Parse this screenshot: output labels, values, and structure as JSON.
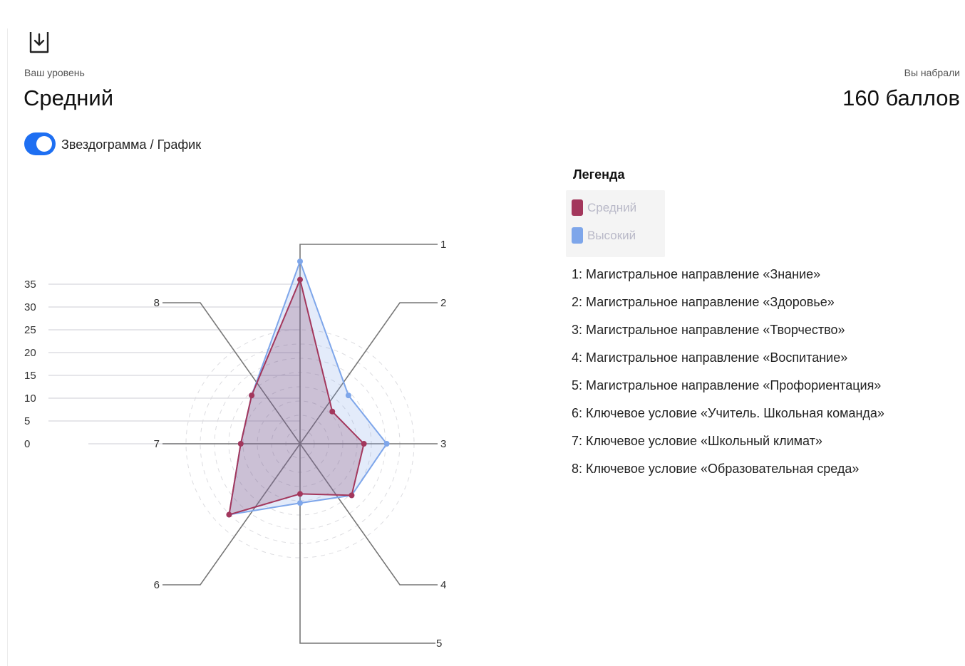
{
  "header": {
    "level_label": "Ваш уровень",
    "level_value": "Средний",
    "score_label": "Вы набрали",
    "score_value": "160 баллов",
    "download_icon": "download-icon"
  },
  "toggle": {
    "label": "Звездограмма / График",
    "on": true
  },
  "legend": {
    "title": "Легенда",
    "series": [
      {
        "name": "Средний",
        "color": "#a3375c"
      },
      {
        "name": "Высокий",
        "color": "#7ea6ea"
      }
    ],
    "axes": [
      "1: Магистральное направление «Знание»",
      "2: Магистральное направление «Здоровье»",
      "3: Магистральное направление «Творчество»",
      "4: Магистральное направление «Воспитание»",
      "5: Магистральное направление «Профориентация»",
      "6: Ключевое условие «Учитель. Школьная команда»",
      "7: Ключевое условие «Школьный климат»",
      "8: Ключевое условие «Образовательная среда»"
    ]
  },
  "chart_data": {
    "type": "radar",
    "categories": [
      "1",
      "2",
      "3",
      "4",
      "5",
      "6",
      "7",
      "8"
    ],
    "yticks": [
      "35",
      "30",
      "25",
      "20",
      "15",
      "10",
      "5",
      "0"
    ],
    "ylim": [
      0,
      35
    ],
    "series": [
      {
        "name": "Средний",
        "values": [
          36,
          10,
          14,
          16,
          11,
          22,
          13,
          15
        ]
      },
      {
        "name": "Высокий",
        "values": [
          40,
          15,
          19,
          16,
          13,
          22,
          13,
          15
        ]
      }
    ],
    "colors": {
      "mid": "#a3375c",
      "high": "#7ea6ea"
    },
    "grid": true
  }
}
